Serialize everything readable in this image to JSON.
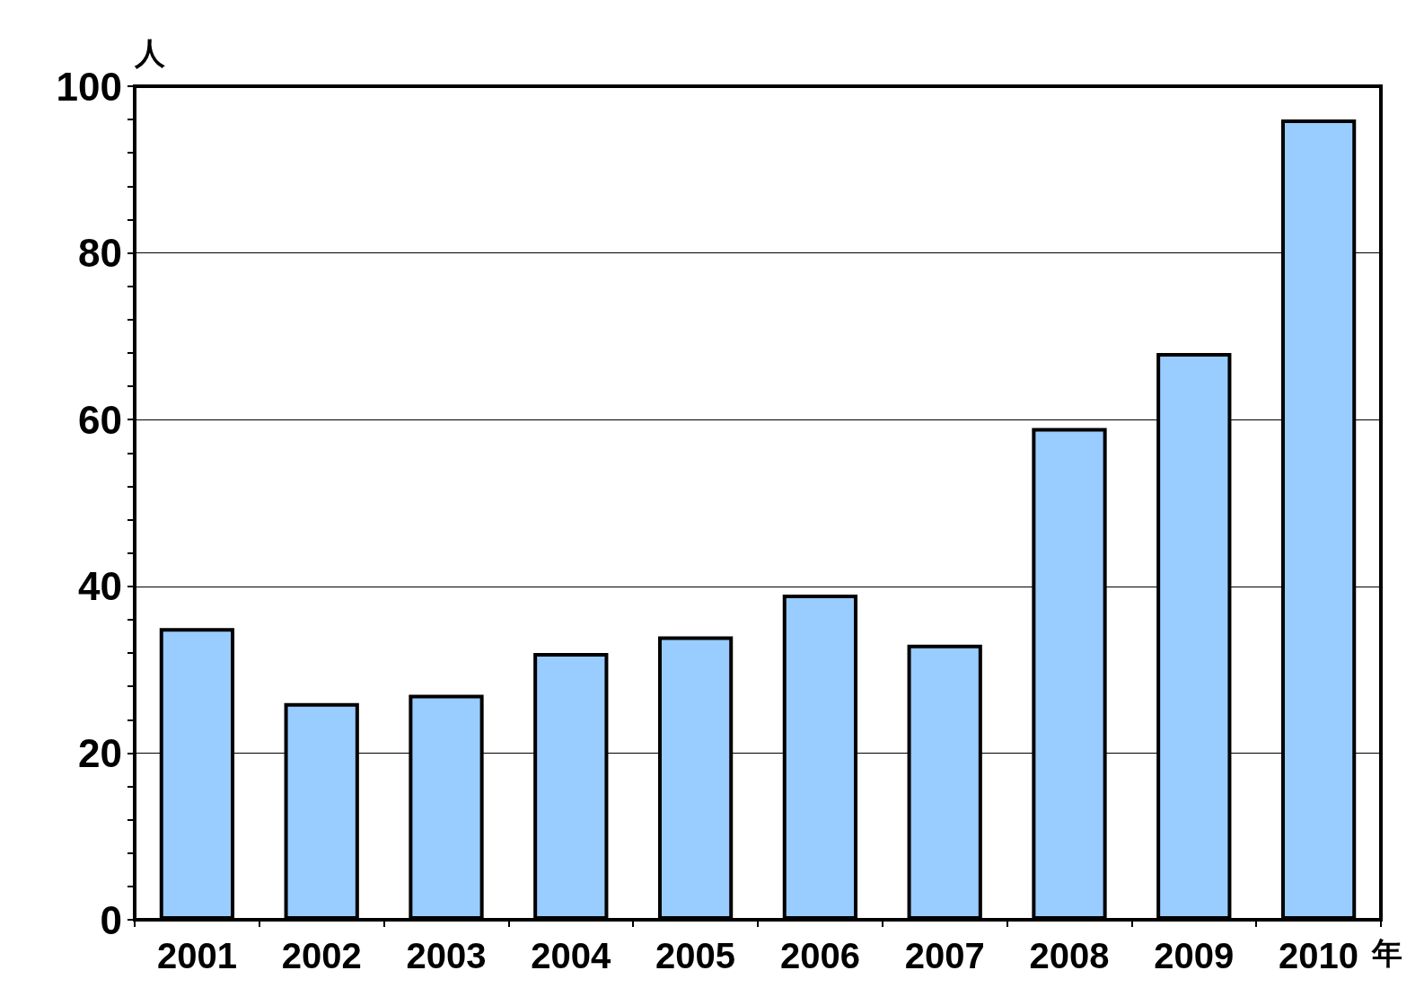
{
  "chart_data": {
    "type": "bar",
    "ylabel": "人",
    "xlabel": "年",
    "categories": [
      "2001",
      "2002",
      "2003",
      "2004",
      "2005",
      "2006",
      "2007",
      "2008",
      "2009",
      "2010"
    ],
    "values": [
      35,
      26,
      27,
      32,
      34,
      39,
      33,
      59,
      68,
      96
    ],
    "color": "#99ccff",
    "ylim": [
      0,
      100
    ],
    "yticks": [
      0,
      {
        "value": 4,
        "label": null
      },
      {
        "value": 8,
        "label": null
      },
      {
        "value": 12,
        "label": null
      },
      {
        "value": 16,
        "label": null
      },
      20,
      {
        "value": 24,
        "label": null
      },
      {
        "value": 28,
        "label": null
      },
      {
        "value": 32,
        "label": null
      },
      {
        "value": 36,
        "label": null
      },
      40,
      {
        "value": 44,
        "label": null
      },
      {
        "value": 48,
        "label": null
      },
      {
        "value": 52,
        "label": null
      },
      {
        "value": 56,
        "label": null
      },
      60,
      {
        "value": 64,
        "label": null
      },
      {
        "value": 68,
        "label": null
      },
      {
        "value": 72,
        "label": null
      },
      {
        "value": 76,
        "label": null
      },
      80,
      {
        "value": 84,
        "label": null
      },
      {
        "value": 88,
        "label": null
      },
      {
        "value": 92,
        "label": null
      },
      {
        "value": 96,
        "label": null
      },
      100
    ],
    "grid": "y"
  }
}
